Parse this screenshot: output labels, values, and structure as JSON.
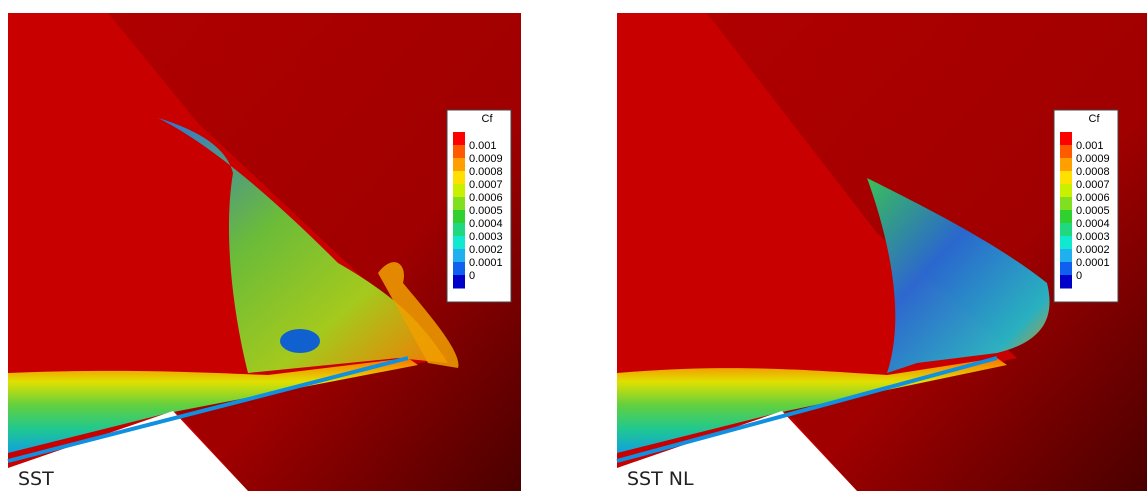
{
  "panels": [
    {
      "label": "SST",
      "legend": {
        "title": "Cf",
        "labels": [
          "0.001",
          "0.0009",
          "0.0008",
          "0.0007",
          "0.0006",
          "0.0005",
          "0.0004",
          "0.0003",
          "0.0002",
          "0.0001",
          "0"
        ]
      }
    },
    {
      "label": "SST NL",
      "legend": {
        "title": "Cf",
        "labels": [
          "0.001",
          "0.0009",
          "0.0008",
          "0.0007",
          "0.0006",
          "0.0005",
          "0.0004",
          "0.0003",
          "0.0002",
          "0.0001",
          "0"
        ]
      }
    }
  ],
  "colormap": [
    "#ff0000",
    "#ff5a00",
    "#ffa000",
    "#ffe000",
    "#c8f000",
    "#80e020",
    "#30d030",
    "#20d880",
    "#10e8d0",
    "#20b0f0",
    "#1060f0",
    "#0000c8"
  ]
}
